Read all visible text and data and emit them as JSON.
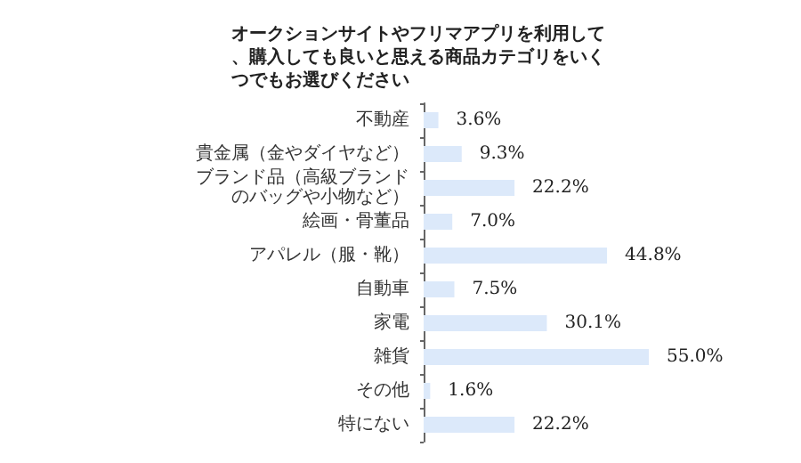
{
  "chart_data": {
    "type": "bar",
    "orientation": "horizontal",
    "title": "オークションサイトやフリマアプリを利用して、購入しても良いと思える商品カテゴリをいくつでもお選びください",
    "categories": [
      "不動産",
      "貴金属（金やダイヤなど）",
      "ブランド品（高級ブランドのバッグや小物など）",
      "絵画・骨董品",
      "アパレル（服・靴）",
      "自動車",
      "家電",
      "雑貨",
      "その他",
      "特にない"
    ],
    "values": [
      3.6,
      9.3,
      22.2,
      7.0,
      44.8,
      7.5,
      30.1,
      55.0,
      1.6,
      22.2
    ],
    "value_labels": [
      "3.6%",
      "9.3%",
      "22.2%",
      "7.0%",
      "44.8%",
      "7.5%",
      "30.1%",
      "55.0%",
      "1.6%",
      "22.2%"
    ],
    "color": "#dce9fa",
    "tick_labels": "y"
  }
}
